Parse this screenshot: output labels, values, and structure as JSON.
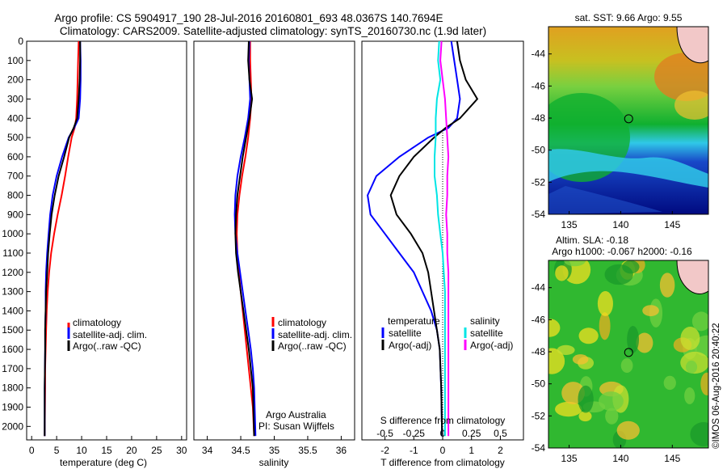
{
  "figure": {
    "title_line1": "Argo profile: CS 5904917_190 28-Jul-2016 20160801_693 48.0367S 140.7694E",
    "title_line2": "Climatology: CARS2009. Satellite-adjusted climatology: synTS_20160730.nc (1.9d later)",
    "timestamp": "©IMOS 06-Aug-2016 20:40:22",
    "credit_line1": "Argo Australia",
    "credit_line2": "PI: Susan Wijffels"
  },
  "colors": {
    "climatology": "#ff0000",
    "satellite": "#0000ff",
    "argo": "#000000",
    "salinity_satellite": "#00e5e5",
    "salinity_argo": "#ff00ff"
  },
  "legend_profiles": [
    "climatology",
    "satellite-adj. clim.",
    "Argo(..raw -QC)"
  ],
  "legend_diff": {
    "temperature_head": "temperature",
    "salinity_head": "salinity",
    "items": [
      "satellite",
      "Argo(-adj)"
    ]
  },
  "chart_data": [
    {
      "type": "line",
      "id": "temperature",
      "xlabel": "temperature (deg C)",
      "xlim": [
        -1,
        31
      ],
      "ylim": [
        2070,
        0
      ],
      "xticks": [
        0,
        5,
        10,
        15,
        20,
        25,
        30
      ],
      "yticks": [
        0,
        100,
        200,
        300,
        400,
        500,
        600,
        700,
        800,
        900,
        1000,
        1100,
        1200,
        1300,
        1400,
        1500,
        1600,
        1700,
        1800,
        1900,
        2000
      ],
      "series": [
        {
          "name": "climatology",
          "color": "#ff0000",
          "x": [
            9.4,
            9.3,
            9.2,
            9.1,
            8.9,
            8.6,
            8.0,
            7.3,
            6.7,
            6.0,
            5.2,
            4.5,
            3.9,
            3.5,
            3.2,
            3.0,
            2.9,
            2.8,
            2.7,
            2.7,
            2.6
          ],
          "y": [
            0,
            100,
            200,
            300,
            400,
            450,
            500,
            600,
            700,
            800,
            900,
            1000,
            1100,
            1200,
            1300,
            1400,
            1500,
            1600,
            1700,
            1800,
            2050
          ]
        },
        {
          "name": "satellite-adj. clim.",
          "color": "#0000ff",
          "x": [
            9.7,
            9.8,
            9.8,
            9.7,
            9.4,
            8.5,
            7.4,
            6.1,
            5.0,
            4.2,
            3.7,
            3.4,
            3.1,
            2.9,
            2.8,
            2.8,
            2.7,
            2.7,
            2.6,
            2.6
          ],
          "y": [
            0,
            100,
            200,
            300,
            400,
            450,
            500,
            600,
            700,
            800,
            900,
            1000,
            1100,
            1200,
            1300,
            1400,
            1500,
            1600,
            1800,
            2050
          ]
        },
        {
          "name": "Argo(..raw -QC)",
          "color": "#000000",
          "x": [
            9.7,
            9.7,
            9.6,
            9.4,
            9.1,
            8.4,
            7.5,
            6.5,
            5.4,
            4.6,
            4.0,
            3.6,
            3.3,
            3.1,
            2.9,
            2.8,
            2.7,
            2.7,
            2.6,
            2.6
          ],
          "y": [
            0,
            100,
            200,
            300,
            400,
            450,
            500,
            600,
            700,
            800,
            900,
            1000,
            1100,
            1200,
            1300,
            1400,
            1500,
            1600,
            1800,
            2050
          ]
        }
      ]
    },
    {
      "type": "line",
      "id": "salinity",
      "xlabel": "salinity",
      "xlim": [
        33.8,
        36.2
      ],
      "ylim": [
        2070,
        0
      ],
      "xticks": [
        34,
        34.5,
        35,
        35.5,
        36
      ],
      "xticklabels": [
        "34",
        "34.5",
        "35",
        "35.5",
        "36"
      ],
      "series": [
        {
          "name": "climatology",
          "color": "#ff0000",
          "x": [
            34.64,
            34.64,
            34.65,
            34.66,
            34.64,
            34.61,
            34.57,
            34.52,
            34.48,
            34.45,
            34.44,
            34.45,
            34.47,
            34.5,
            34.53,
            34.56,
            34.59,
            34.62,
            34.65,
            34.68,
            34.7
          ],
          "y": [
            0,
            100,
            200,
            300,
            400,
            500,
            600,
            700,
            800,
            900,
            1000,
            1100,
            1200,
            1300,
            1400,
            1500,
            1600,
            1700,
            1800,
            1900,
            2050
          ]
        },
        {
          "name": "satellite-adj. clim.",
          "color": "#0000ff",
          "x": [
            34.63,
            34.62,
            34.63,
            34.64,
            34.61,
            34.56,
            34.5,
            34.45,
            34.42,
            34.41,
            34.42,
            34.45,
            34.49,
            34.53,
            34.57,
            34.61,
            34.65,
            34.68,
            34.7,
            34.72
          ],
          "y": [
            0,
            100,
            200,
            300,
            400,
            500,
            600,
            700,
            800,
            900,
            1000,
            1100,
            1200,
            1300,
            1400,
            1500,
            1600,
            1700,
            1800,
            2050
          ]
        },
        {
          "name": "Argo(..raw -QC)",
          "color": "#000000",
          "x": [
            34.62,
            34.61,
            34.63,
            34.67,
            34.63,
            34.58,
            34.53,
            34.49,
            34.45,
            34.43,
            34.42,
            34.43,
            34.46,
            34.5,
            34.54,
            34.58,
            34.62,
            34.65,
            34.68,
            34.7
          ],
          "y": [
            0,
            100,
            200,
            300,
            400,
            500,
            600,
            700,
            800,
            900,
            1000,
            1100,
            1200,
            1300,
            1400,
            1500,
            1600,
            1700,
            1800,
            2050
          ]
        }
      ]
    },
    {
      "type": "line",
      "id": "difference",
      "xlabel": "T difference from climatology",
      "top_label": "S difference from climatology",
      "xlim": [
        -2.8,
        2.8
      ],
      "ylim": [
        2070,
        0
      ],
      "xticks": [
        -2,
        -1,
        0,
        1,
        2
      ],
      "top_ticks": [
        -0.5,
        -0.25,
        0,
        0.25,
        0.5
      ],
      "top_ticklabels": [
        "-0.5",
        "-0.25",
        "0",
        "0.25",
        "0.5"
      ],
      "series": [
        {
          "name": "temperature satellite",
          "color": "#0000ff",
          "x": [
            0.3,
            0.4,
            0.5,
            0.6,
            0.5,
            0.2,
            -0.5,
            -1.5,
            -2.3,
            -2.6,
            -2.5,
            -2.0,
            -1.5,
            -1.0,
            -0.7,
            -0.4,
            -0.2,
            -0.1,
            -0.05,
            -0.02
          ],
          "y": [
            0,
            100,
            200,
            300,
            400,
            450,
            500,
            600,
            700,
            800,
            900,
            1000,
            1100,
            1200,
            1300,
            1400,
            1500,
            1600,
            1800,
            2050
          ]
        },
        {
          "name": "temperature Argo(-adj)",
          "color": "#000000",
          "x": [
            0.5,
            0.6,
            0.8,
            1.2,
            0.6,
            0.1,
            -0.3,
            -1.0,
            -1.5,
            -1.8,
            -1.6,
            -1.1,
            -0.7,
            -0.5,
            -0.4,
            -0.3,
            -0.2,
            -0.1,
            -0.05,
            -0.02
          ],
          "y": [
            0,
            100,
            200,
            300,
            400,
            450,
            500,
            600,
            700,
            800,
            900,
            1000,
            1100,
            1200,
            1300,
            1400,
            1500,
            1600,
            1800,
            2050
          ]
        },
        {
          "name": "salinity satellite",
          "color": "#00e5e5",
          "x": [
            -0.03,
            -0.04,
            -0.02,
            -0.05,
            -0.06,
            -0.06,
            -0.07,
            -0.07,
            -0.05,
            -0.04,
            -0.02,
            0.0,
            0.01,
            0.02,
            0.02,
            0.02,
            0.02,
            0.02,
            0.02
          ],
          "y": [
            0,
            100,
            200,
            300,
            400,
            500,
            600,
            700,
            800,
            900,
            1000,
            1100,
            1200,
            1300,
            1400,
            1500,
            1600,
            1800,
            2050
          ]
        },
        {
          "name": "salinity Argo(-adj)",
          "color": "#ff00ff",
          "x": [
            -0.01,
            -0.02,
            0.0,
            0.02,
            0.03,
            0.04,
            0.05,
            0.04,
            0.04,
            0.03,
            0.04,
            0.04,
            0.05,
            0.05,
            0.05,
            0.05,
            0.05,
            0.05,
            0.05
          ],
          "y": [
            0,
            100,
            200,
            300,
            400,
            500,
            600,
            700,
            800,
            900,
            1000,
            1100,
            1200,
            1300,
            1400,
            1500,
            1600,
            1800,
            2050
          ]
        }
      ]
    },
    {
      "type": "heatmap",
      "id": "sst-map",
      "title": "sat. SST: 9.66 Argo: 9.55",
      "xlim": [
        133,
        148.5
      ],
      "ylim": [
        -54,
        -42.3
      ],
      "xticks": [
        135,
        140,
        145
      ],
      "yticks": [
        -44,
        -46,
        -48,
        -50,
        -52,
        -54
      ],
      "marker": {
        "lon": 140.77,
        "lat": -48.04
      }
    },
    {
      "type": "heatmap",
      "id": "sla-map",
      "title_line1": "Altim. SLA: -0.18",
      "title_line2": "Argo h1000: -0.067 h2000: -0.16",
      "xlim": [
        133,
        148.5
      ],
      "ylim": [
        -54,
        -42.3
      ],
      "xticks": [
        135,
        140,
        145
      ],
      "yticks": [
        -44,
        -46,
        -48,
        -50,
        -52,
        -54
      ],
      "marker": {
        "lon": 140.77,
        "lat": -48.04
      }
    }
  ]
}
